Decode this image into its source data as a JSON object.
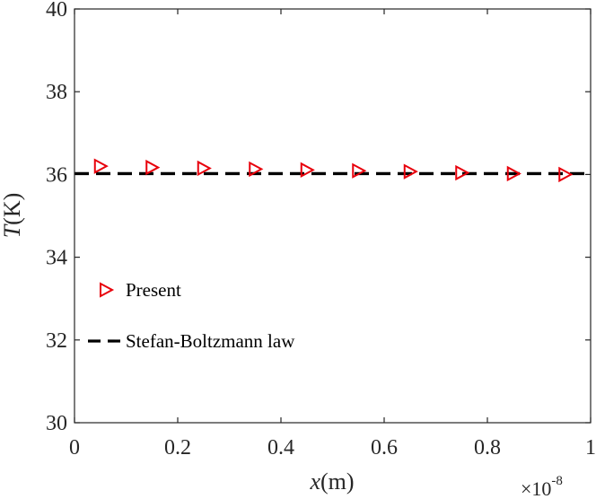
{
  "chart_data": {
    "type": "line",
    "xlabel": {
      "var": "x",
      "unit": "(m)"
    },
    "ylabel": {
      "var": "T",
      "unit": "(K)"
    },
    "x_multiplier": {
      "base": "×10",
      "exponent": "-8"
    },
    "xlim": [
      0,
      1
    ],
    "ylim": [
      30,
      40
    ],
    "x_ticks": [
      0,
      0.2,
      0.4,
      0.6,
      0.8,
      1
    ],
    "x_tick_labels": [
      "0",
      "0.2",
      "0.4",
      "0.6",
      "0.8",
      "1"
    ],
    "y_ticks": [
      30,
      32,
      34,
      36,
      38,
      40
    ],
    "y_tick_labels": [
      "30",
      "32",
      "34",
      "36",
      "38",
      "40"
    ],
    "grid": false,
    "legend_position": "center-left",
    "series": [
      {
        "name": "Present",
        "style": "markers",
        "marker": "triangle-right",
        "color": "#e8000b",
        "x": [
          0.05,
          0.15,
          0.25,
          0.35,
          0.45,
          0.55,
          0.65,
          0.75,
          0.85,
          0.95
        ],
        "y": [
          36.2,
          36.17,
          36.15,
          36.13,
          36.11,
          36.09,
          36.07,
          36.04,
          36.02,
          36.0
        ]
      },
      {
        "name": "Stefan-Boltzmann law",
        "style": "dashed-line",
        "color": "#000000",
        "x": [
          0,
          1
        ],
        "y": [
          36.02,
          36.02
        ]
      }
    ]
  }
}
